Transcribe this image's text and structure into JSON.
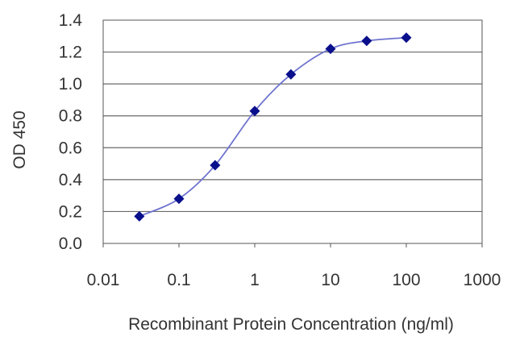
{
  "chart_data": {
    "type": "line",
    "title": "",
    "xlabel": "Recombinant Protein Concentration (ng/ml)",
    "ylabel": "OD 450",
    "x_scale": "log",
    "xlim": [
      0.01,
      1000
    ],
    "ylim": [
      0.0,
      1.4
    ],
    "x_ticks": [
      0.01,
      0.1,
      1,
      10,
      100,
      1000
    ],
    "x_tick_labels": [
      "0.01",
      "0.1",
      "1",
      "10",
      "100",
      "1000"
    ],
    "y_ticks": [
      0.0,
      0.2,
      0.4,
      0.6,
      0.8,
      1.0,
      1.2,
      1.4
    ],
    "y_tick_labels": [
      "0.0",
      "0.2",
      "0.4",
      "0.6",
      "0.8",
      "1.0",
      "1.2",
      "1.4"
    ],
    "grid": "horizontal",
    "legend": "none",
    "series": [
      {
        "x": [
          0.03,
          0.1,
          0.3,
          1,
          3,
          10,
          30,
          100
        ],
        "y": [
          0.17,
          0.28,
          0.49,
          0.83,
          1.06,
          1.22,
          1.27,
          1.29
        ],
        "line_color": "#6f74cf",
        "marker_color": "#0a0f8c",
        "marker": "diamond"
      }
    ]
  }
}
